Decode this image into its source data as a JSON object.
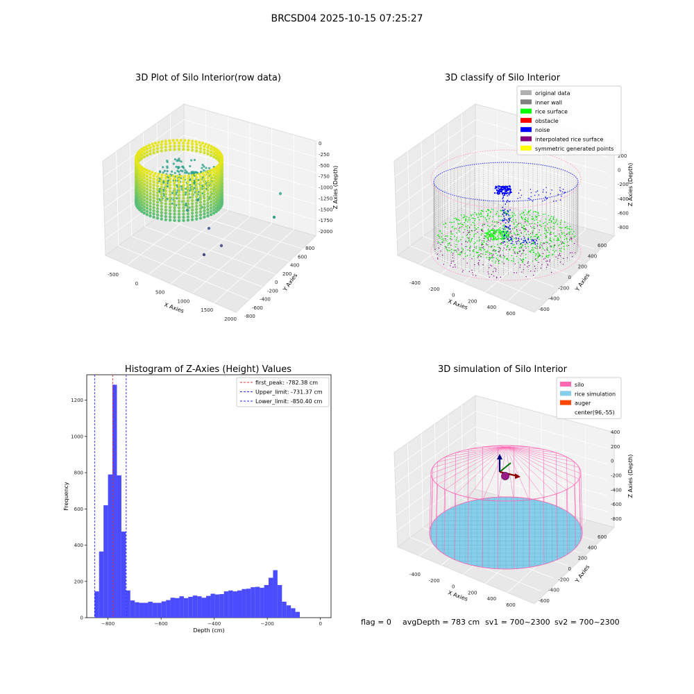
{
  "figure": {
    "suptitle": "BRCSD04 2025-10-15 07:25:27",
    "footer": {
      "flag": "flag = 0",
      "avg_depth": "avgDepth = 783 cm",
      "sv1": "sv1 = 700~2300",
      "sv2": "sv2 = 700~2300"
    }
  },
  "colors": {
    "hist_bar": "#4b4bff",
    "peak_line": "#e03030",
    "limit_line": "#2020ff",
    "silo": "#ff69b4",
    "rice_sim": "#87ceeb",
    "auger": "#ff4500",
    "raw_yellow": "#e6e61e",
    "raw_teal": "#2aa08a",
    "grid_pane": "#f2f2f2"
  },
  "chart_data": [
    {
      "type": "scatter3d",
      "title": "3D Plot of Silo Interior(row data)",
      "xlabel": "X Axies",
      "ylabel": "Y Axies",
      "zlabel": "Z Axies (Depth)",
      "x_ticks": [
        "-500",
        "0",
        "500",
        "1000",
        "1500",
        "2000"
      ],
      "y_ticks": [
        "-800",
        "-600",
        "-400",
        "-200",
        "0",
        "200",
        "400",
        "600",
        "800"
      ],
      "z_ticks": [
        "0",
        "-250",
        "-500",
        "-750",
        "-1000",
        "-1250",
        "-1500",
        "-1750",
        "-2000"
      ],
      "xlim": [
        -650,
        2000
      ],
      "ylim": [
        -850,
        850
      ],
      "zlim": [
        -2100,
        100
      ]
    },
    {
      "type": "scatter3d",
      "title": "3D classify of Silo Interior",
      "xlabel": "X Axies",
      "ylabel": "Y Axies",
      "zlabel": "Z Axies (Depth)",
      "x_ticks": [
        "-400",
        "-200",
        "0",
        "200",
        "400",
        "600"
      ],
      "y_ticks": [
        "-600",
        "-400",
        "-200",
        "0",
        "200",
        "400",
        "600"
      ],
      "z_ticks": [
        "200",
        "0",
        "-200",
        "-400",
        "-600",
        "-800"
      ],
      "legend_position": "top-right",
      "legend": [
        {
          "label": "original data",
          "color": "#b0b0b0"
        },
        {
          "label": "inner wall",
          "color": "#808080"
        },
        {
          "label": "rice surface",
          "color": "#00ff00"
        },
        {
          "label": "obstacle",
          "color": "#ff0000"
        },
        {
          "label": "noise",
          "color": "#0000ff"
        },
        {
          "label": "interpolated rice surface",
          "color": "#800080"
        },
        {
          "label": "symmetric generated points",
          "color": "#ffff00"
        }
      ]
    },
    {
      "type": "bar",
      "title": "Histogram of Z-Axies (Height) Values",
      "xlabel": "Depth (cm)",
      "ylabel": "Frequency",
      "xlim": [
        -880,
        40
      ],
      "ylim": [
        0,
        1340
      ],
      "x_ticks": [
        -800,
        -600,
        -400,
        -200,
        0
      ],
      "y_ticks": [
        0,
        200,
        400,
        600,
        800,
        1000,
        1200
      ],
      "bin_start": -850.4,
      "bin_width": 16.8,
      "values": [
        145,
        365,
        620,
        790,
        1285,
        785,
        475,
        150,
        95,
        85,
        82,
        82,
        88,
        82,
        82,
        90,
        97,
        110,
        108,
        118,
        108,
        115,
        122,
        118,
        110,
        120,
        132,
        128,
        130,
        145,
        150,
        145,
        150,
        158,
        160,
        168,
        170,
        165,
        180,
        220,
        262,
        180,
        88,
        68,
        52,
        32
      ],
      "vlines": [
        {
          "label": "first_peak: -782.38 cm",
          "x": -782.38,
          "style": "peak"
        },
        {
          "label": "Upper_limit: -731.37 cm",
          "x": -731.37,
          "style": "limit"
        },
        {
          "label": "Lower_limit: -850.40 cm",
          "x": -850.4,
          "style": "limit"
        }
      ],
      "legend_position": "top-right"
    },
    {
      "type": "surface3d",
      "title": "3D simulation of Silo Interior",
      "xlabel": "X Axies",
      "ylabel": "Y Axies",
      "zlabel": "Z Axies (Depth)",
      "x_ticks": [
        "-400",
        "-200",
        "0",
        "200",
        "400",
        "600"
      ],
      "y_ticks": [
        "-600",
        "-400",
        "-200",
        "0",
        "200",
        "400",
        "600"
      ],
      "z_ticks": [
        "400",
        "200",
        "0",
        "-200",
        "-400",
        "-600",
        "-800"
      ],
      "legend_position": "top-right",
      "legend": [
        {
          "label": "silo",
          "color": "#ff69b4"
        },
        {
          "label": "rice simulation",
          "color": "#87ceeb"
        },
        {
          "label": "auger",
          "color": "#ff4500"
        },
        {
          "label": "center(96,-55)",
          "color": "none"
        }
      ]
    }
  ]
}
